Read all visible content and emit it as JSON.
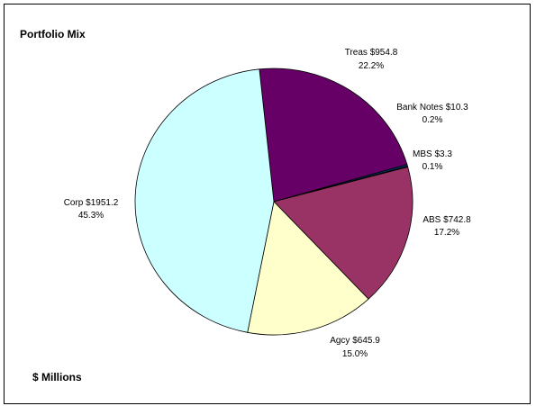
{
  "chart_data": {
    "type": "pie",
    "title": "Portfolio Mix",
    "subtitle": "$ Millions",
    "unit": "$ Millions",
    "legend": "none",
    "slices": [
      {
        "name": "Treas",
        "label": "Treas $954.8",
        "value": 954.8,
        "percent_label": "22.2%",
        "color": "#660066"
      },
      {
        "name": "Bank Notes",
        "label": "Bank Notes $10.3",
        "value": 10.3,
        "percent_label": "0.2%",
        "color": "#003366"
      },
      {
        "name": "MBS",
        "label": "MBS $3.3",
        "value": 3.3,
        "percent_label": "0.1%",
        "color": "#CC6600"
      },
      {
        "name": "ABS",
        "label": "ABS $742.8",
        "value": 742.8,
        "percent_label": "17.2%",
        "color": "#993366"
      },
      {
        "name": "Agcy",
        "label": "Agcy $645.9",
        "value": 645.9,
        "percent_label": "15.0%",
        "color": "#FFFFCC"
      },
      {
        "name": "Corp",
        "label": "Corp $1951.2",
        "value": 1951.2,
        "percent_label": "45.3%",
        "color": "#CCFFFF"
      }
    ]
  }
}
